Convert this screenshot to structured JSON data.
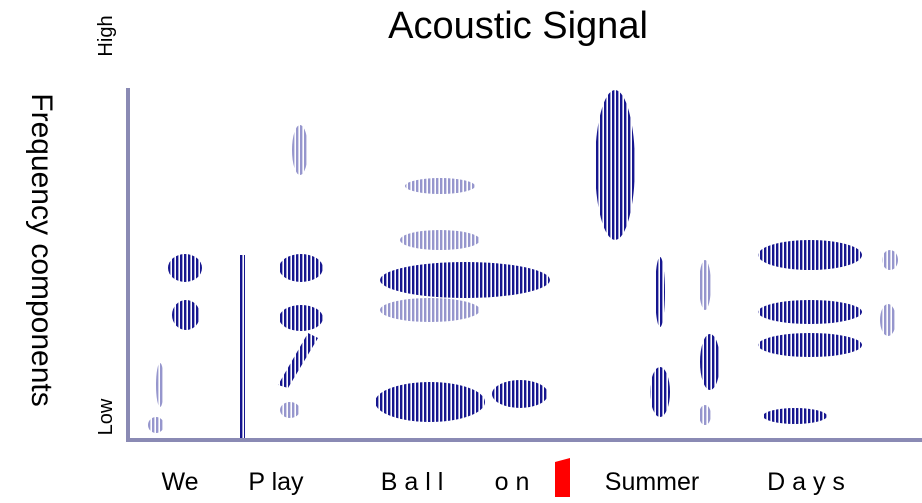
{
  "title": "Acoustic Signal",
  "y_axis": {
    "label": "Frequency components",
    "high": "High",
    "low": "Low"
  },
  "words": [
    "We",
    "P lay",
    "B a l l",
    "o n",
    "Summer",
    "D a y s"
  ]
}
